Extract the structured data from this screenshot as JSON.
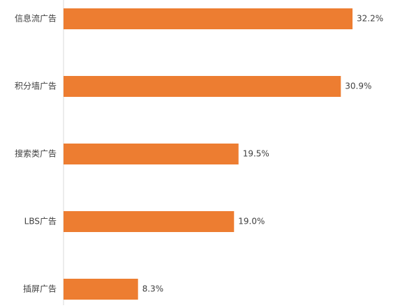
{
  "chart_data": {
    "type": "bar",
    "orientation": "horizontal",
    "categories": [
      "信息流广告",
      "积分墙广告",
      "搜索类广告",
      "LBS广告",
      "插屏广告"
    ],
    "values": [
      32.2,
      30.9,
      19.5,
      19.0,
      8.3
    ],
    "value_labels": [
      "32.2%",
      "30.9%",
      "19.5%",
      "19.0%",
      "8.3%"
    ],
    "value_unit": "%",
    "xlim": [
      0,
      32.2
    ],
    "grid": false,
    "legend": "none",
    "colors": {
      "bar": "#ED7D31",
      "axis": "#D9D9D9",
      "text": "#404040"
    }
  }
}
